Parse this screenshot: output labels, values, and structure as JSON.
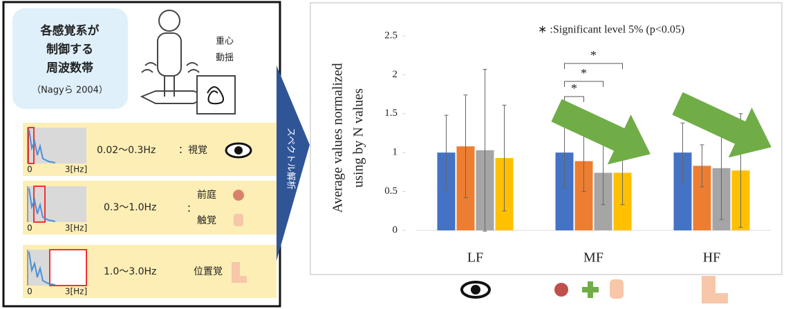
{
  "panel": {
    "title": [
      "各感覚系が",
      "制御する",
      "周波数帯"
    ],
    "source": "（Nagyら 2004）",
    "sway": [
      "重心",
      "動揺"
    ],
    "bands": [
      {
        "range": "0.02～0.3Hz",
        "sense": "：視覚"
      },
      {
        "range": "0.3～1.0Hz",
        "colon": "：",
        "senses": [
          "前庭",
          "触覚"
        ]
      },
      {
        "range": "1.0～3.0Hz",
        "sense": "位置覚"
      }
    ],
    "axis": {
      "start": "0",
      "end": "3[Hz]"
    }
  },
  "arrow_label": "スペクトル解析",
  "chart_data": {
    "type": "bar",
    "ylabel": [
      "Average values normalized",
      "using by N values"
    ],
    "categories": [
      "LF",
      "MF",
      "HF"
    ],
    "series": [
      {
        "color": "#4472c4",
        "values": [
          1.0,
          1.0,
          1.0
        ],
        "errors": [
          0.48,
          0.45,
          0.38
        ]
      },
      {
        "color": "#ed7d31",
        "values": [
          1.08,
          0.89,
          0.83
        ],
        "errors": [
          0.66,
          0.39,
          0.27
        ]
      },
      {
        "color": "#a5a5a5",
        "values": [
          1.03,
          0.74,
          0.8
        ],
        "errors": [
          1.04,
          0.41,
          0.66
        ]
      },
      {
        "color": "#ffc000",
        "values": [
          0.93,
          0.74,
          0.77
        ],
        "errors": [
          0.68,
          0.41,
          0.73
        ]
      }
    ],
    "ylim": [
      0,
      2.5
    ],
    "yticks": [
      0,
      0.5,
      1,
      1.5,
      2,
      2.5
    ],
    "annotations": [
      "∗ :Significant level 5% (p<0.05)",
      "*",
      "*",
      "*"
    ],
    "grid": false
  }
}
